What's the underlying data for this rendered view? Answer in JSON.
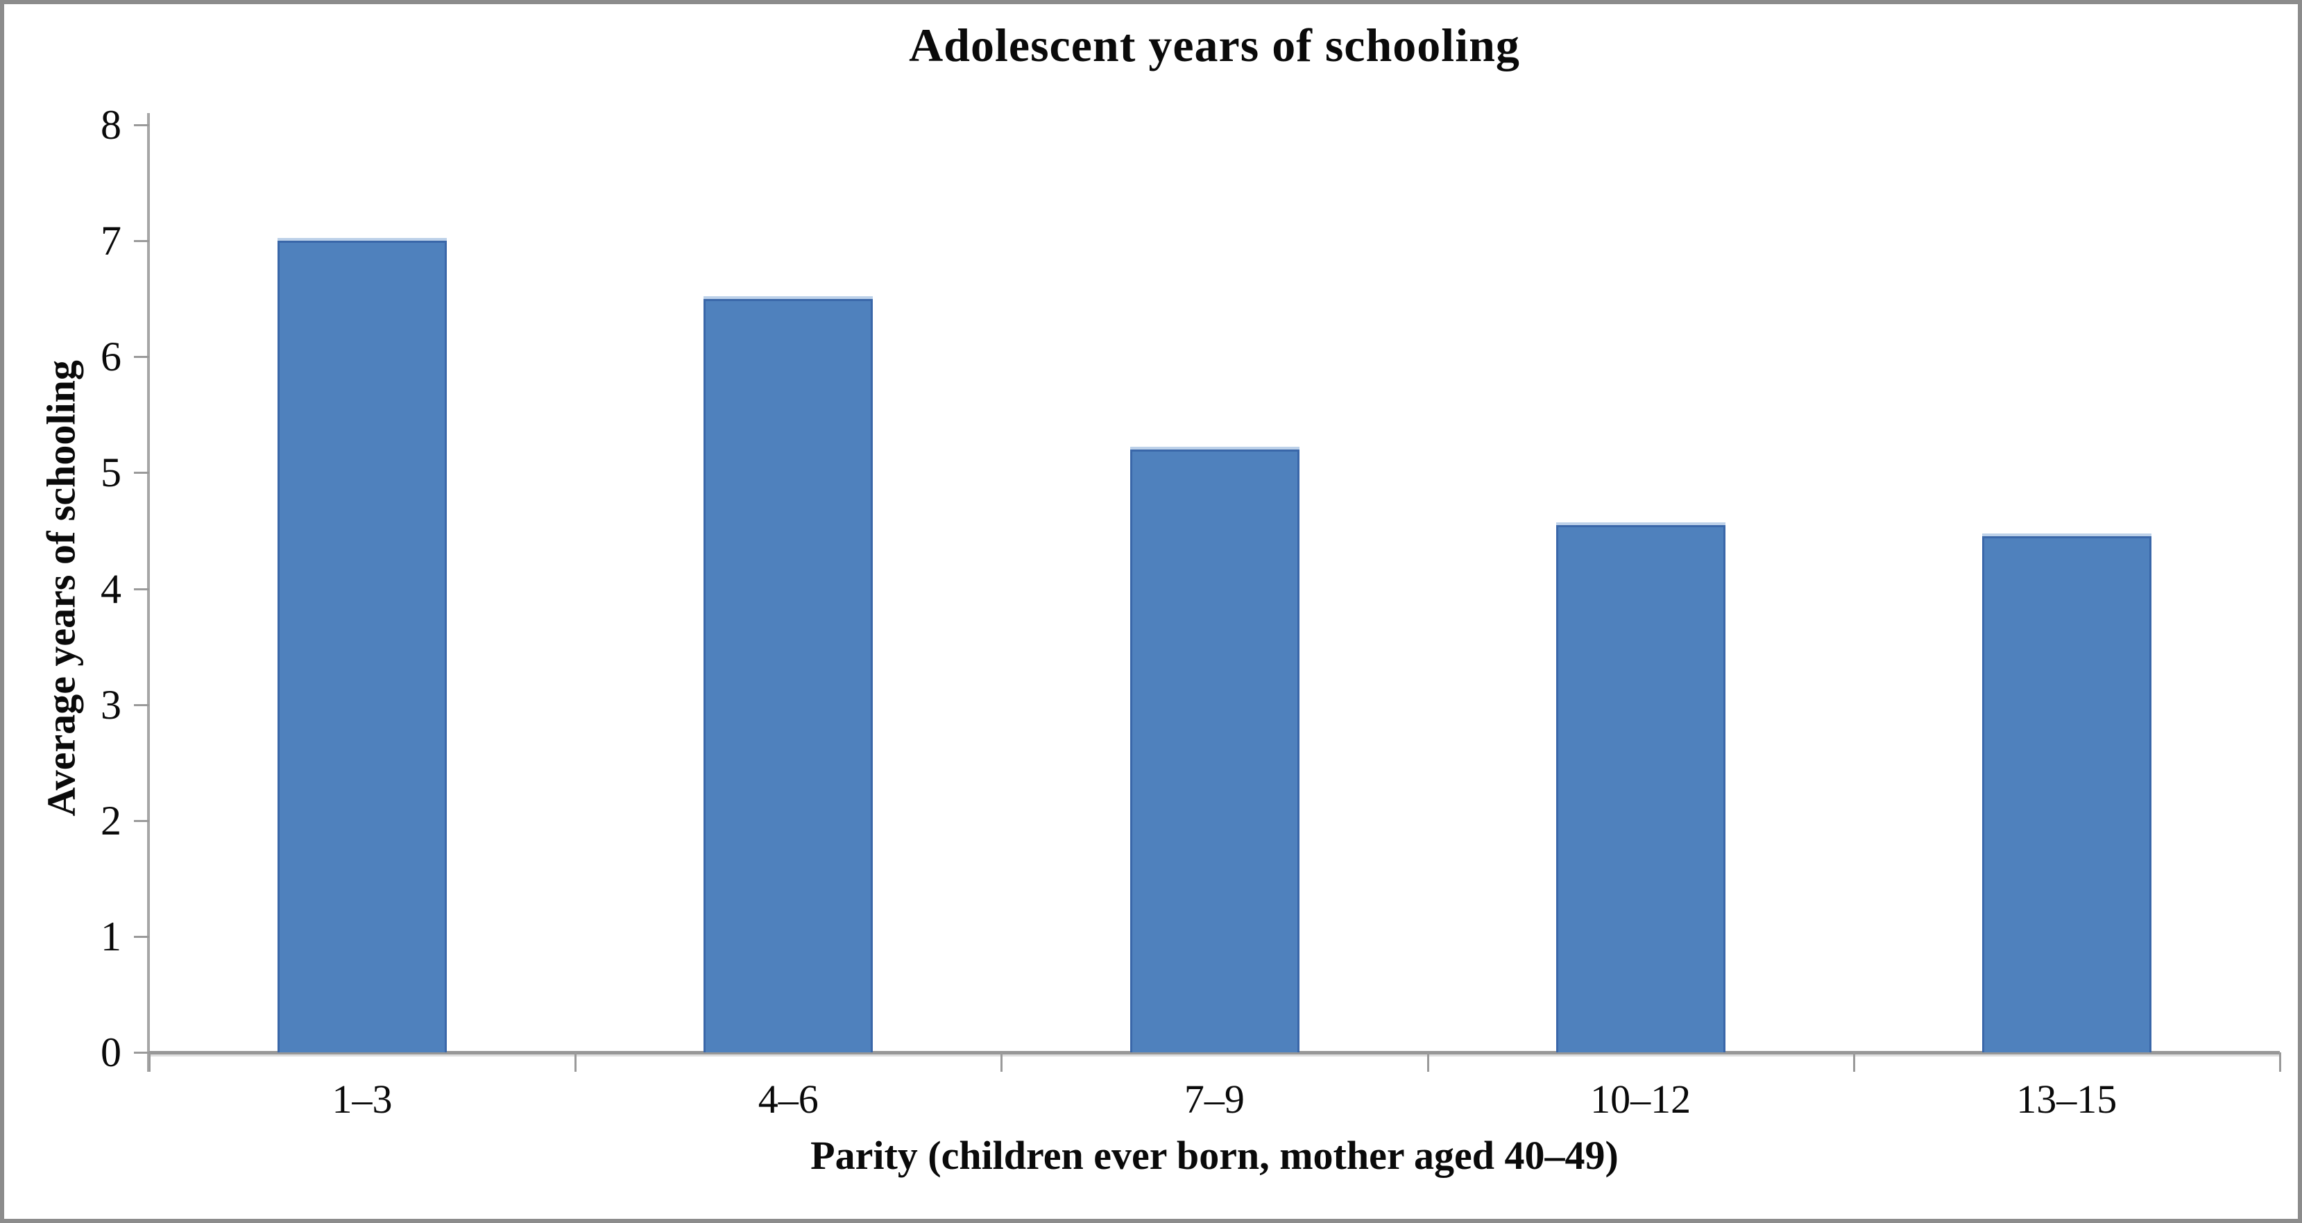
{
  "figure": {
    "frame_color": "#8c8c8c",
    "background_color": "#ffffff",
    "axis_color": "#9a9a9a",
    "text_color": "#0a0a0a"
  },
  "chart_data": {
    "type": "bar",
    "title": "Adolescent years of schooling",
    "categories": [
      "1–3",
      "4–6",
      "7–9",
      "10–12",
      "13–15"
    ],
    "values": [
      7.0,
      6.5,
      5.2,
      4.55,
      4.45
    ],
    "series": [
      {
        "name": "Average years of schooling",
        "values": [
          7.0,
          6.5,
          5.2,
          4.55,
          4.45
        ]
      }
    ],
    "xlabel": "Parity (children ever born, mother aged 40–49)",
    "ylabel": "Average years of schooling",
    "ylim": [
      0,
      8
    ],
    "yticks": [
      0,
      1,
      2,
      3,
      4,
      5,
      6,
      7,
      8
    ],
    "grid": false,
    "legend_position": "none",
    "bar_color": "#4f81bd",
    "bar_border_color": "#3a67a9",
    "bar_top_highlight_color": "#b9cfe8"
  }
}
